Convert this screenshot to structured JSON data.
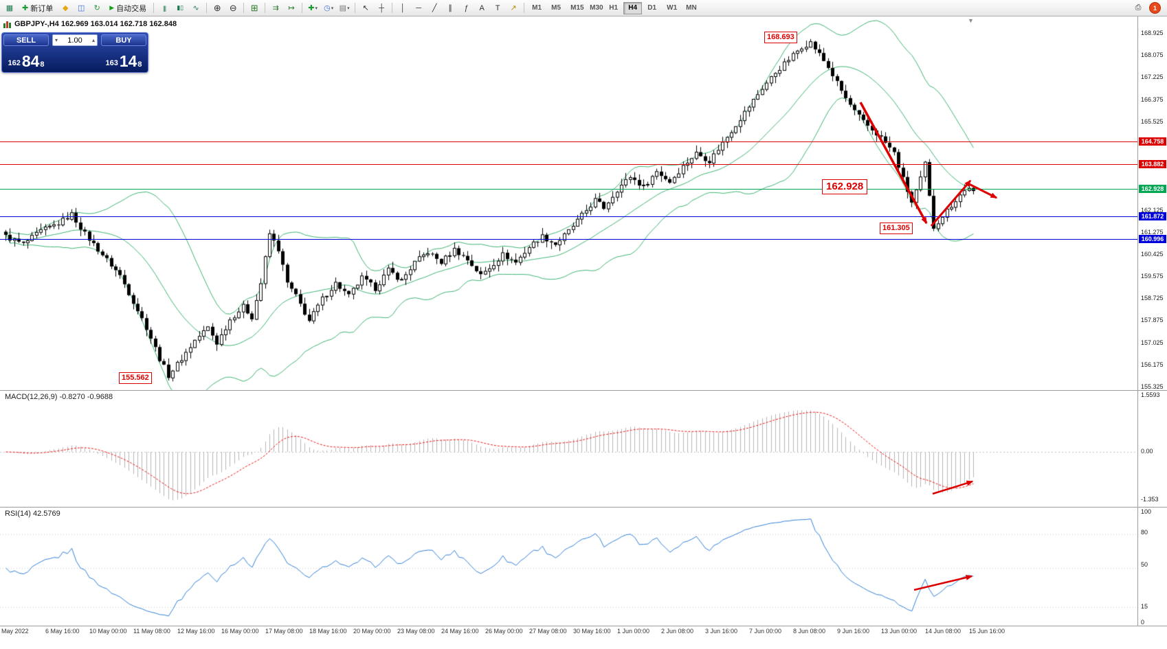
{
  "toolbar": {
    "new_order_label": "新订单",
    "auto_trading_label": "自动交易",
    "timeframes": [
      "M1",
      "M5",
      "M15",
      "M30",
      "H1",
      "H4",
      "D1",
      "W1",
      "MN"
    ],
    "active_timeframe": "H4",
    "notification_badge": "1",
    "icons": {
      "chart_window": "▦",
      "new_order": "✚",
      "indicators": "◆",
      "market_watch": "◫",
      "refresh": "↻",
      "auto_trading_play": "▶",
      "bar_chart": "|||",
      "candlestick_chart": "▮▯",
      "line_chart": "∿",
      "zoom_in": "⊕",
      "zoom_out": "⊖",
      "tile_windows": "⊞",
      "auto_scroll": "⇉",
      "chart_shift": "↦",
      "new_chart": "✚",
      "period_menu": "◷",
      "template_menu": "▤",
      "dropdown_arrow": "▾",
      "cursor": "↖",
      "crosshair": "┼",
      "vertical_line": "│",
      "horizontal_line": "─",
      "trendline": "╱",
      "channel": "∥",
      "fibonacci": "ƒ",
      "text": "A",
      "text_label": "T",
      "arrows": "↗",
      "printer": "⎙",
      "shift_triangle": "▼",
      "spin_down": "▾",
      "spin_up": "▴"
    }
  },
  "chart": {
    "title": "GBPJPY-,H4 162.969 163.014 162.718 162.848",
    "symbol": "GBPJPY-",
    "period": "H4"
  },
  "trade_panel": {
    "sell_label": "SELL",
    "buy_label": "BUY",
    "volume": "1.00",
    "sell_price_prefix": "162",
    "sell_price_big": "84",
    "sell_price_sup": "8",
    "buy_price_prefix": "163",
    "buy_price_big": "14",
    "buy_price_sup": "8"
  },
  "price_axis": {
    "ticks": [
      "168.925",
      "168.075",
      "167.225",
      "166.375",
      "165.525",
      "162.125",
      "161.275",
      "160.425",
      "159.575",
      "158.725",
      "157.875",
      "157.025",
      "156.175",
      "155.325"
    ],
    "line_labels": [
      {
        "label": "164.758",
        "value": 164.758,
        "color": "#dd0000"
      },
      {
        "label": "163.882",
        "value": 163.882,
        "color": "#dd0000"
      },
      {
        "label": "162.928",
        "value": 162.928,
        "color": "#00a651"
      },
      {
        "label": "161.872",
        "value": 161.872,
        "color": "#0000dd"
      },
      {
        "label": "160.996",
        "value": 160.996,
        "color": "#0000dd"
      }
    ]
  },
  "callouts": {
    "swing_high": "168.693",
    "level": "162.928",
    "recent_low": "161.305",
    "swing_low": "155.562"
  },
  "time_axis": [
    "May 2022",
    "6 May 16:00",
    "10 May 00:00",
    "11 May 08:00",
    "12 May 16:00",
    "16 May 00:00",
    "17 May 08:00",
    "18 May 16:00",
    "20 May 00:00",
    "23 May 08:00",
    "24 May 16:00",
    "26 May 00:00",
    "27 May 08:00",
    "30 May 16:00",
    "1 Jun 00:00",
    "2 Jun 08:00",
    "3 Jun 16:00",
    "7 Jun 00:00",
    "8 Jun 08:00",
    "9 Jun 16:00",
    "13 Jun 00:00",
    "14 Jun 08:00",
    "15 Jun 16:00"
  ],
  "macd_panel": {
    "label": "MACD(12,26,9) -0.8270 -0.9688",
    "axis": [
      "1.5593",
      "0.00",
      "-1.353"
    ]
  },
  "rsi_panel": {
    "label": "RSI(14) 42.5769",
    "axis": [
      "100",
      "80",
      "50",
      "15",
      "0"
    ]
  },
  "chart_data": {
    "type": "candlestick",
    "symbol": "GBPJPY-",
    "timeframe": "H4",
    "price_axis_range": [
      155.325,
      168.925
    ],
    "bars": 221,
    "current_bar": {
      "open": 162.969,
      "high": 163.014,
      "low": 162.718,
      "close": 162.848
    },
    "key_points": {
      "swing_high": 168.693,
      "swing_low": 155.562,
      "recent_low": 161.305
    },
    "horizontal_levels": [
      164.758,
      163.882,
      162.928,
      161.872,
      160.996
    ],
    "close_path_anchors": [
      [
        0,
        161.1
      ],
      [
        4,
        160.8
      ],
      [
        8,
        161.3
      ],
      [
        12,
        161.6
      ],
      [
        15,
        161.95
      ],
      [
        18,
        161.2
      ],
      [
        22,
        160.4
      ],
      [
        26,
        159.6
      ],
      [
        29,
        158.6
      ],
      [
        32,
        157.6
      ],
      [
        35,
        156.4
      ],
      [
        37,
        155.75
      ],
      [
        40,
        156.4
      ],
      [
        43,
        157.1
      ],
      [
        46,
        157.6
      ],
      [
        48,
        157.0
      ],
      [
        51,
        157.9
      ],
      [
        54,
        158.4
      ],
      [
        56,
        158.0
      ],
      [
        58,
        159.3
      ],
      [
        60,
        161.2
      ],
      [
        62,
        160.6
      ],
      [
        64,
        159.3
      ],
      [
        66,
        158.8
      ],
      [
        69,
        157.85
      ],
      [
        72,
        158.7
      ],
      [
        75,
        159.3
      ],
      [
        78,
        158.8
      ],
      [
        81,
        159.5
      ],
      [
        84,
        159.1
      ],
      [
        87,
        159.8
      ],
      [
        90,
        159.4
      ],
      [
        93,
        160.1
      ],
      [
        96,
        160.5
      ],
      [
        99,
        160.1
      ],
      [
        102,
        160.6
      ],
      [
        105,
        160.2
      ],
      [
        108,
        159.6
      ],
      [
        110,
        159.9
      ],
      [
        113,
        160.4
      ],
      [
        116,
        160.1
      ],
      [
        119,
        160.7
      ],
      [
        122,
        161.1
      ],
      [
        125,
        160.8
      ],
      [
        128,
        161.3
      ],
      [
        131,
        161.9
      ],
      [
        134,
        162.5
      ],
      [
        136,
        162.2
      ],
      [
        139,
        162.9
      ],
      [
        142,
        163.4
      ],
      [
        145,
        163.0
      ],
      [
        148,
        163.6
      ],
      [
        151,
        163.2
      ],
      [
        154,
        163.8
      ],
      [
        157,
        164.3
      ],
      [
        160,
        164.0
      ],
      [
        163,
        164.7
      ],
      [
        166,
        165.4
      ],
      [
        169,
        166.1
      ],
      [
        172,
        166.8
      ],
      [
        175,
        167.4
      ],
      [
        178,
        167.9
      ],
      [
        181,
        168.4
      ],
      [
        183,
        168.55
      ],
      [
        185,
        168.1
      ],
      [
        187,
        167.6
      ],
      [
        189,
        167.0
      ],
      [
        191,
        166.4
      ],
      [
        193,
        165.9
      ],
      [
        195,
        165.5
      ],
      [
        197,
        165.2
      ],
      [
        199,
        164.9
      ],
      [
        202,
        164.3
      ],
      [
        204,
        163.3
      ],
      [
        206,
        162.4
      ],
      [
        208,
        163.3
      ],
      [
        209,
        163.9
      ],
      [
        210,
        162.6
      ],
      [
        211,
        161.45
      ],
      [
        213,
        161.9
      ],
      [
        215,
        162.3
      ],
      [
        217,
        162.7
      ],
      [
        219,
        163.0
      ],
      [
        220,
        162.848
      ]
    ],
    "indicators": [
      {
        "name": "Bollinger Bands",
        "period": 20,
        "deviation": 2
      },
      {
        "name": "MACD",
        "fast": 12,
        "slow": 26,
        "signal": 9,
        "current_macd": -0.827,
        "current_signal": -0.9688,
        "scale_max": 1.5593,
        "scale_min": -1.353
      },
      {
        "name": "RSI",
        "period": 14,
        "current_value": 42.5769,
        "levels": [
          80,
          50,
          15
        ]
      }
    ]
  }
}
